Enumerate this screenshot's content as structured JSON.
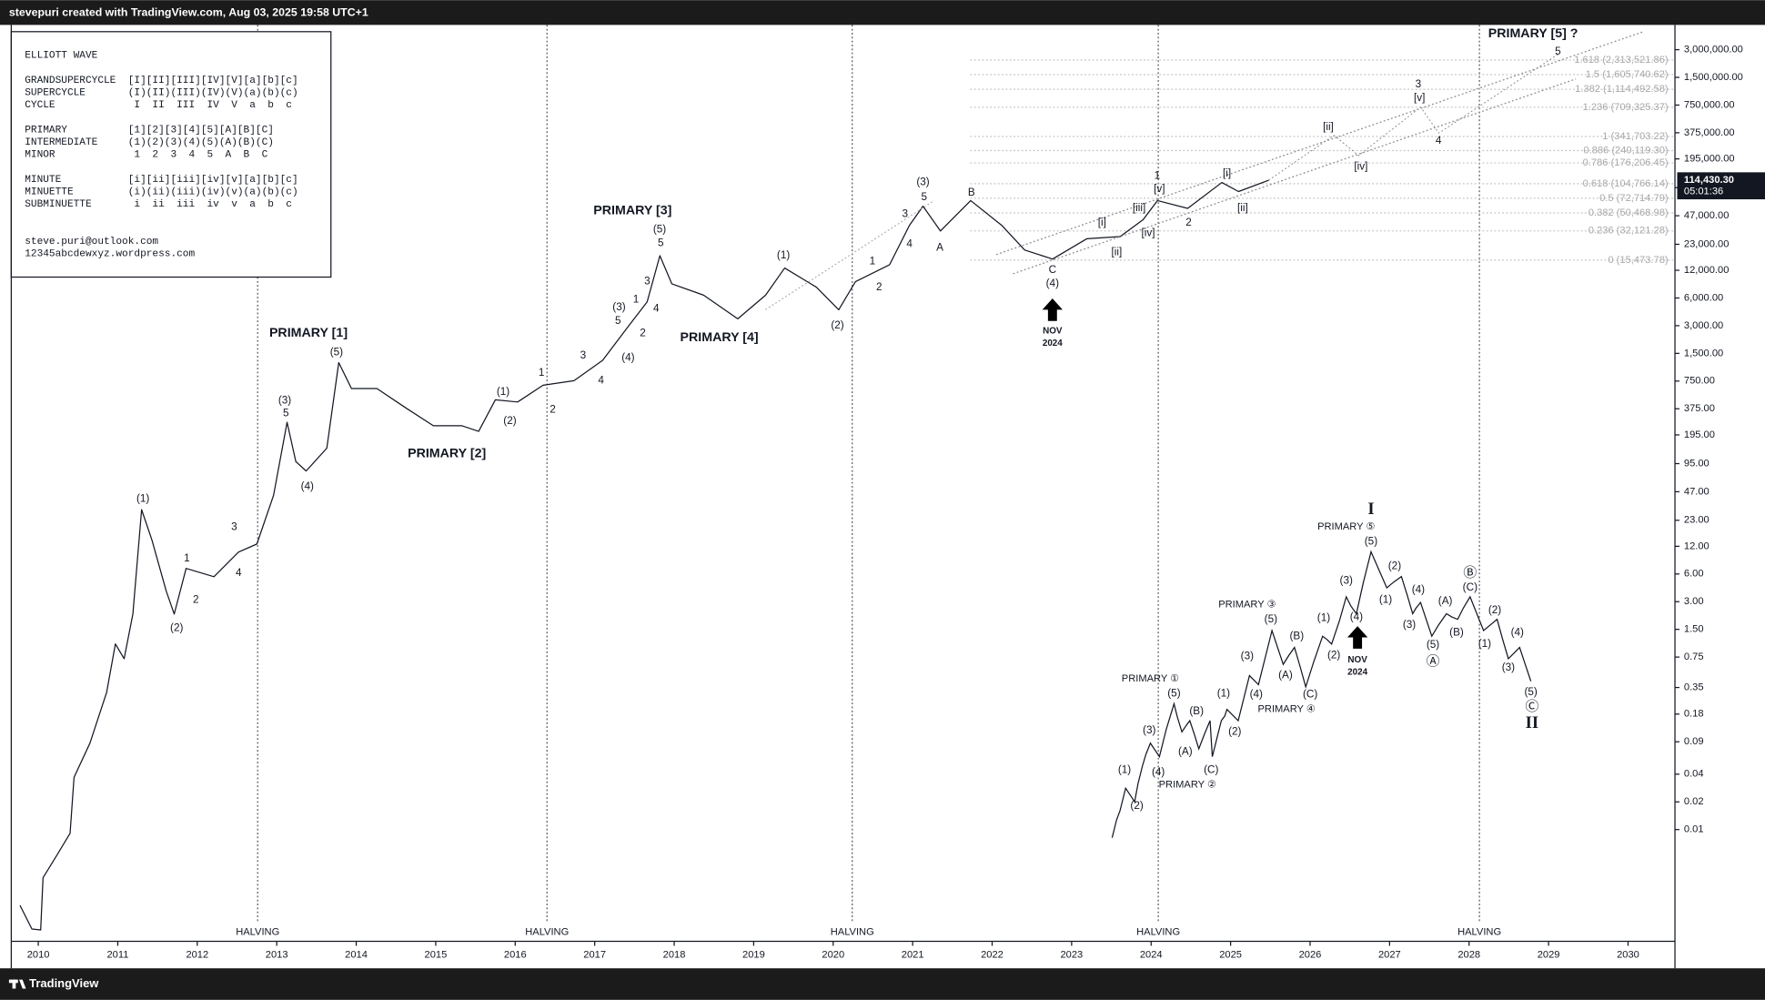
{
  "header": {
    "text": "stevepuri created with TradingView.com, Aug 03, 2025 19:58 UTC+1"
  },
  "legend_box": {
    "lines": [
      "ELLIOTT WAVE",
      "GRANDSUPERCYCLE  [I][II][III][IV][V][a][b][c]",
      "SUPERCYCLE       (I)(II)(III)(IV)(V)(a)(b)(c)",
      "CYCLE             I  II  III  IV  V  a  b  c",
      "PRIMARY          [1][2][3][4][5][A][B][C]",
      "INTERMEDIATE     (1)(2)(3)(4)(5)(A)(B)(C)",
      "MINOR             1  2  3  4  5  A  B  C",
      "MINUTE           [i][ii][iii][iv][v][a][b][c]",
      "MINUETTE         (i)(ii)(iii)(iv)(v)(a)(b)(c)",
      "SUBMINUETTE       i  ii  iii  iv  v  a  b  c",
      "steve.puri@outlook.com",
      "12345abcdewxyz.wordpress.com"
    ]
  },
  "chart_data": {
    "type": "line",
    "log_y": true,
    "grid": false,
    "xlim": [
      2009.66,
      2030.59
    ],
    "xticks": [
      2010,
      2011,
      2012,
      2013,
      2014,
      2015,
      2016,
      2017,
      2018,
      2019,
      2020,
      2021,
      2022,
      2023,
      2024,
      2025,
      2026,
      2027,
      2028,
      2029,
      2030
    ],
    "ylim": [
      0.00061,
      5575000
    ],
    "yticks": [
      {
        "value": 3000000,
        "label": "3,000,000.00"
      },
      {
        "value": 1500000,
        "label": "1,500,000.00"
      },
      {
        "value": 750000,
        "label": "750,000.00"
      },
      {
        "value": 375000,
        "label": "375,000.00"
      },
      {
        "value": 195000,
        "label": "195,000.00"
      },
      {
        "value": 95000,
        "label": "95,000.00"
      },
      {
        "value": 47000,
        "label": "47,000.00"
      },
      {
        "value": 23000,
        "label": "23,000.00"
      },
      {
        "value": 12000,
        "label": "12,000.00"
      },
      {
        "value": 6000,
        "label": "6,000.00"
      },
      {
        "value": 3000,
        "label": "3,000.00"
      },
      {
        "value": 1500,
        "label": "1,500.00"
      },
      {
        "value": 750,
        "label": "750.00"
      },
      {
        "value": 375,
        "label": "375.00"
      },
      {
        "value": 195,
        "label": "195.00"
      },
      {
        "value": 95,
        "label": "95.00"
      },
      {
        "value": 47,
        "label": "47.00"
      },
      {
        "value": 23,
        "label": "23.00"
      },
      {
        "value": 12,
        "label": "12.00"
      },
      {
        "value": 6,
        "label": "6.00"
      },
      {
        "value": 3,
        "label": "3.00"
      },
      {
        "value": 1.5,
        "label": "1.50"
      },
      {
        "value": 0.75,
        "label": "0.75"
      },
      {
        "value": 0.35,
        "label": "0.35"
      },
      {
        "value": 0.18,
        "label": "0.18"
      },
      {
        "value": 0.09,
        "label": "0.09"
      },
      {
        "value": 0.04,
        "label": "0.04"
      },
      {
        "value": 0.02,
        "label": "0.02"
      },
      {
        "value": 0.01,
        "label": "0.01"
      }
    ],
    "series": [
      {
        "color": "#131722",
        "dashed": false,
        "x": [
          2009.77,
          2009.92,
          2010.03,
          2010.06,
          2010.23,
          2010.4,
          2010.45,
          2010.65,
          2010.86,
          2010.97,
          2011.08,
          2011.19,
          2011.3,
          2011.43,
          2011.61,
          2011.71,
          2011.86,
          2012.21,
          2012.52,
          2012.75,
          2012.96,
          2013.13,
          2013.24,
          2013.37,
          2013.63,
          2013.78,
          2013.94,
          2014.26,
          2014.62,
          2014.97,
          2015.33,
          2015.54,
          2015.75,
          2016.03,
          2016.35,
          2016.74,
          2017.1,
          2017.42,
          2017.66,
          2017.82,
          2017.97,
          2018.37,
          2018.8,
          2019.15,
          2019.39,
          2019.79,
          2020.07,
          2020.28,
          2020.71,
          2020.96,
          2021.13,
          2021.35,
          2021.73,
          2022.12,
          2022.41,
          2022.76,
          2023.19,
          2023.61,
          2023.9,
          2024.08,
          2024.46,
          2024.89,
          2025.1,
          2025.48
        ],
        "values": [
          0.0015,
          0.00083,
          0.00081,
          0.003,
          0.0052,
          0.0091,
          0.037,
          0.087,
          0.31,
          1.04,
          0.72,
          2.2,
          30,
          14,
          3.9,
          2.2,
          6.9,
          5.6,
          10.4,
          12.7,
          43,
          267,
          100,
          79,
          140,
          1190,
          622,
          622,
          385,
          245,
          245,
          213,
          469,
          444,
          676,
          757,
          1260,
          2930,
          5450,
          17300,
          8550,
          6440,
          3560,
          6440,
          12700,
          7850,
          4470,
          9030,
          13800,
          37000,
          59700,
          32100,
          68700,
          37000,
          19900,
          15900,
          26400,
          27900,
          42600,
          68700,
          56500,
          108000,
          86100,
          114430.3
        ]
      },
      {
        "color": "#8a8a8a",
        "dashed": true,
        "x": [
          2025.48,
          2026.3,
          2026.61,
          2027.39,
          2027.62,
          2029.14
        ],
        "values": [
          114430.3,
          352000,
          212000,
          713000,
          372000,
          2750000
        ]
      }
    ],
    "last_price": {
      "value": 114430.3,
      "label": "114,430.30"
    },
    "countdown": "05:01:36",
    "fib_levels": [
      {
        "value": 2313521.86,
        "label": "1.618 (2,313,521.86)"
      },
      {
        "value": 1605740.62,
        "label": "1.5 (1,605,740.62)"
      },
      {
        "value": 1114492.58,
        "label": "1.382 (1,114,492.58)"
      },
      {
        "value": 709325.37,
        "label": "1.236 (709,325.37)"
      },
      {
        "value": 341703.22,
        "label": "1 (341,703.22)"
      },
      {
        "value": 240119.3,
        "label": "0.886 (240,119.30)"
      },
      {
        "value": 176206.45,
        "label": "0.786 (176,206.45)"
      },
      {
        "value": 104766.14,
        "label": "0.618 (104,766.14)"
      },
      {
        "value": 72714.79,
        "label": "0.5 (72,714.79)"
      },
      {
        "value": 50468.98,
        "label": "0.382 (50,468.98)"
      },
      {
        "value": 32121.28,
        "label": "0.236 (32,121.28)"
      },
      {
        "value": 15473.78,
        "label": "0 (15,473.78)"
      }
    ],
    "halvings": {
      "label": "HALVING",
      "x": [
        2012.76,
        2016.4,
        2020.24,
        2024.09,
        2028.13
      ]
    },
    "wave_labels": [
      "(1)",
      "(2)",
      "1",
      "2",
      "3",
      "4",
      "(3)",
      "5",
      "(4)",
      "(5)",
      "PRIMARY [1]",
      "PRIMARY [2]",
      "(1)",
      "(2)",
      "1",
      "2",
      "3",
      "4",
      "5",
      "(3)",
      "(4)",
      "1",
      "2",
      "3",
      "4",
      "(5)",
      "5",
      "PRIMARY [3]",
      "PRIMARY [4]",
      "(1)",
      "(2)",
      "1",
      "2",
      "3",
      "4",
      "(3)",
      "5",
      "A",
      "B",
      "C",
      "(4)",
      "NOV",
      "2024",
      "[i]",
      "[ii]",
      "[iii]",
      "[iv]",
      "[v]",
      "1",
      "2",
      "[i]",
      "[ii]",
      "[ii]",
      "[iv]",
      "3",
      "[v]",
      "4",
      "5",
      "PRIMARY [5] ?"
    ],
    "inset_labels": [
      "I",
      "PRIMARY ⑤",
      "(5)",
      "(2)",
      "(1)",
      "(4)",
      "(3)",
      "(A)",
      "(B)",
      "Ⓑ",
      "(C)",
      "(5)",
      "Ⓐ",
      "(2)",
      "(1)",
      "(4)",
      "(3)",
      "(5)",
      "Ⓒ",
      "II",
      "PRIMARY ③",
      "(5)",
      "(3)",
      "(4)",
      "(B)",
      "(A)",
      "(C)",
      "PRIMARY ④",
      "(3)",
      "(1)",
      "(4)",
      "(2)",
      "NOV",
      "2024",
      "PRIMARY ①",
      "(5)",
      "(3)",
      "(B)",
      "(1)",
      "(A)",
      "(4)",
      "(C)",
      "PRIMARY ②",
      "(2)",
      "(1)",
      "(2)"
    ]
  },
  "footer": {
    "brand": "TradingView"
  }
}
